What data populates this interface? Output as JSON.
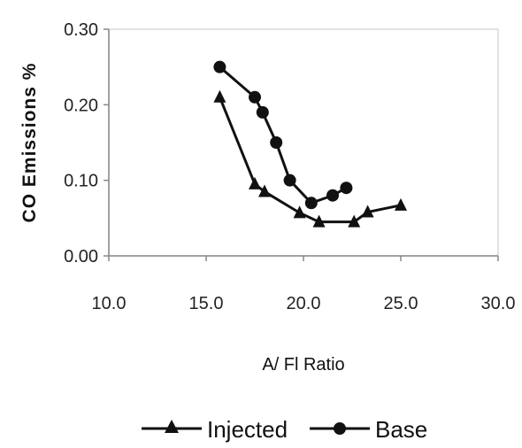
{
  "chart_data": {
    "type": "line",
    "xlabel": "A/ Fl Ratio",
    "ylabel": "CO Emissions %",
    "xlim": [
      10.0,
      30.0
    ],
    "ylim": [
      0.0,
      0.3
    ],
    "x_ticks": [
      "10.0",
      "15.0",
      "20.0",
      "25.0",
      "30.0"
    ],
    "y_ticks": [
      "0.00",
      "0.10",
      "0.20",
      "0.30"
    ],
    "grid": false,
    "legend_position": "bottom",
    "series": [
      {
        "name": "Injected",
        "marker": "triangle",
        "color": "#111111",
        "x": [
          15.7,
          17.5,
          18.0,
          19.8,
          20.8,
          22.6,
          23.3,
          25.0
        ],
        "y": [
          0.21,
          0.095,
          0.085,
          0.057,
          0.045,
          0.045,
          0.058,
          0.067
        ]
      },
      {
        "name": "Base",
        "marker": "circle",
        "color": "#111111",
        "x": [
          15.7,
          17.5,
          17.9,
          18.6,
          19.3,
          20.4,
          21.5,
          22.2
        ],
        "y": [
          0.25,
          0.21,
          0.19,
          0.15,
          0.1,
          0.07,
          0.08,
          0.09
        ]
      }
    ]
  }
}
